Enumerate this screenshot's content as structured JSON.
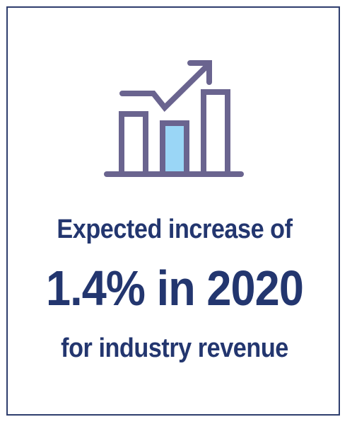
{
  "infographic": {
    "icon": "rising-bar-chart-icon",
    "line1": "Expected increase of",
    "line2": "1.4% in 2020",
    "line3": "for industry revenue"
  },
  "colors": {
    "text": "#23366f",
    "icon_stroke": "#6a648f",
    "highlight_bar": "#9ad6f6",
    "border": "#2f3e6e"
  }
}
